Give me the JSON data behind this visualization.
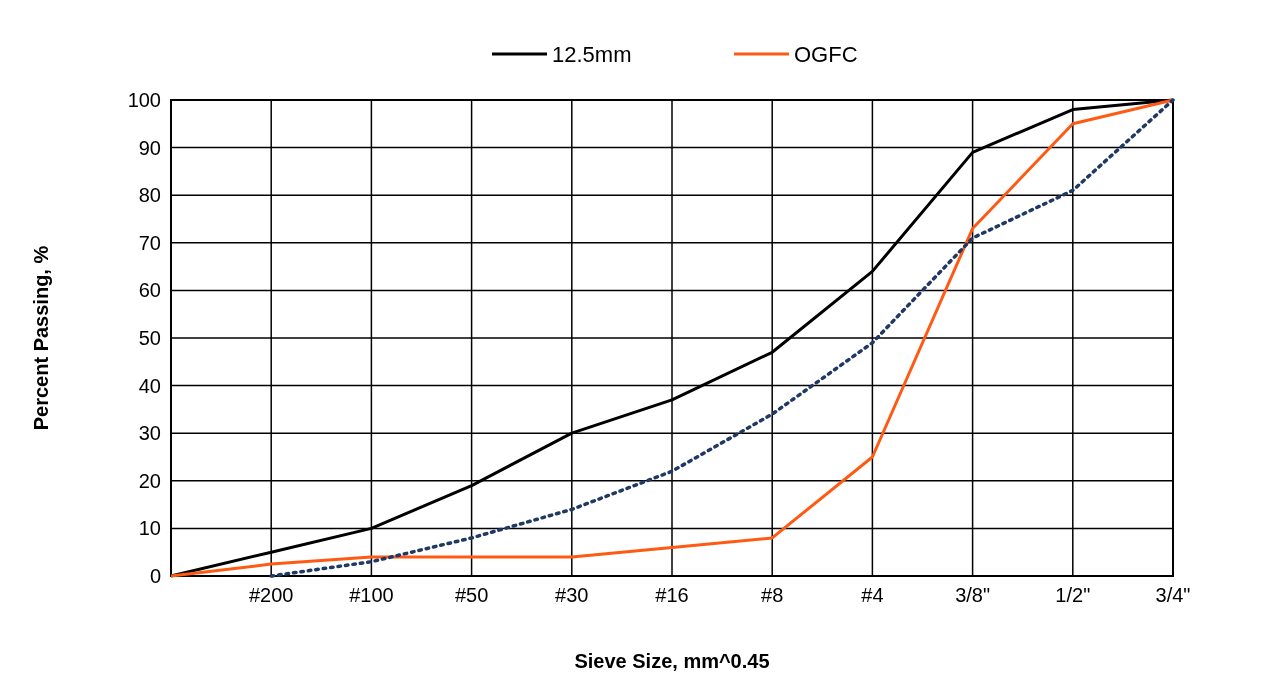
{
  "chart_data": {
    "type": "line",
    "xlabel": "Sieve Size, mm^0.45",
    "ylabel": "Percent Passing, %",
    "categories": [
      null,
      "#200",
      "#100",
      "#50",
      "#30",
      "#16",
      "#8",
      "#4",
      "3/8\"",
      "1/2\"",
      "3/4\""
    ],
    "ylim": [
      0,
      100
    ],
    "yticks": [
      0,
      10,
      20,
      30,
      40,
      50,
      60,
      70,
      80,
      90,
      100
    ],
    "grid": true,
    "legend": "top",
    "marker": "none",
    "series": [
      {
        "name": "12.5mm",
        "color": "#000000",
        "values": [
          0,
          5,
          10,
          19,
          30,
          37,
          47,
          64,
          89,
          98,
          100
        ]
      },
      {
        "name": "OGFC",
        "color": "#ff5a14",
        "values": [
          0,
          2.5,
          4,
          4,
          4,
          6,
          8,
          25,
          73,
          95,
          100
        ]
      },
      {
        "color": "#1f3864",
        "line_style": "dotted",
        "values": [
          null,
          0,
          3,
          8,
          14,
          22,
          34,
          49,
          71,
          81,
          100
        ]
      }
    ]
  }
}
